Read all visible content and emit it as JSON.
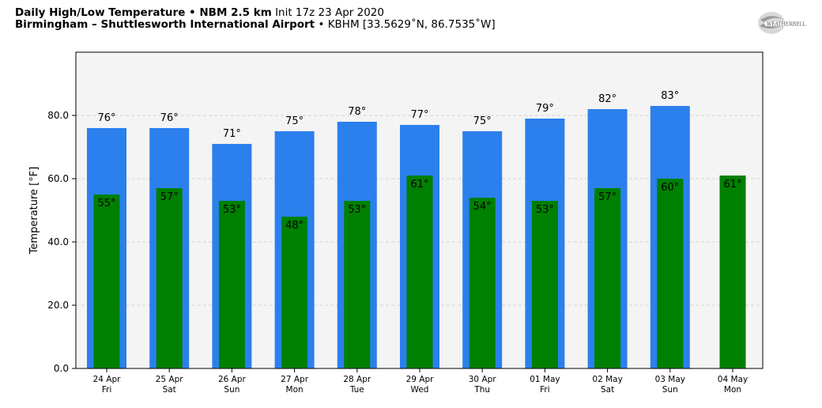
{
  "header": {
    "line1_bold": "Daily High/Low Temperature • NBM 2.5 km",
    "line1_rest": "Init 17z 23 Apr 2020",
    "line2_bold": "Birmingham – Shuttlesworth International Airport",
    "line2_rest": "• KBHM [33.5629˚N, 86.7535˚W]"
  },
  "logo": {
    "text": "WEATHERBELL",
    "icon": "weatherbell-logo"
  },
  "chart_data": {
    "type": "bar",
    "title": "Daily High/Low Temperature • NBM 2.5 km",
    "ylabel": "Temperature [°F]",
    "xlabel": "",
    "ylim": [
      0,
      100
    ],
    "yticks": [
      "0.0",
      "20.0",
      "40.0",
      "60.0",
      "80.0"
    ],
    "grid": true,
    "categories": [
      {
        "date": "24 Apr",
        "day": "Fri"
      },
      {
        "date": "25 Apr",
        "day": "Sat"
      },
      {
        "date": "26 Apr",
        "day": "Sun"
      },
      {
        "date": "27 Apr",
        "day": "Mon"
      },
      {
        "date": "28 Apr",
        "day": "Tue"
      },
      {
        "date": "29 Apr",
        "day": "Wed"
      },
      {
        "date": "30 Apr",
        "day": "Thu"
      },
      {
        "date": "01 May",
        "day": "Fri"
      },
      {
        "date": "02 May",
        "day": "Sat"
      },
      {
        "date": "03 May",
        "day": "Sun"
      },
      {
        "date": "04 May",
        "day": "Mon"
      }
    ],
    "series": [
      {
        "key": "high",
        "color": "#2b80ed",
        "values": [
          76,
          76,
          71,
          75,
          78,
          77,
          75,
          79,
          82,
          83,
          null
        ]
      },
      {
        "key": "low",
        "color": "#008000",
        "values": [
          55,
          57,
          53,
          48,
          53,
          61,
          54,
          53,
          57,
          60,
          61
        ]
      }
    ],
    "value_suffix": "°"
  }
}
